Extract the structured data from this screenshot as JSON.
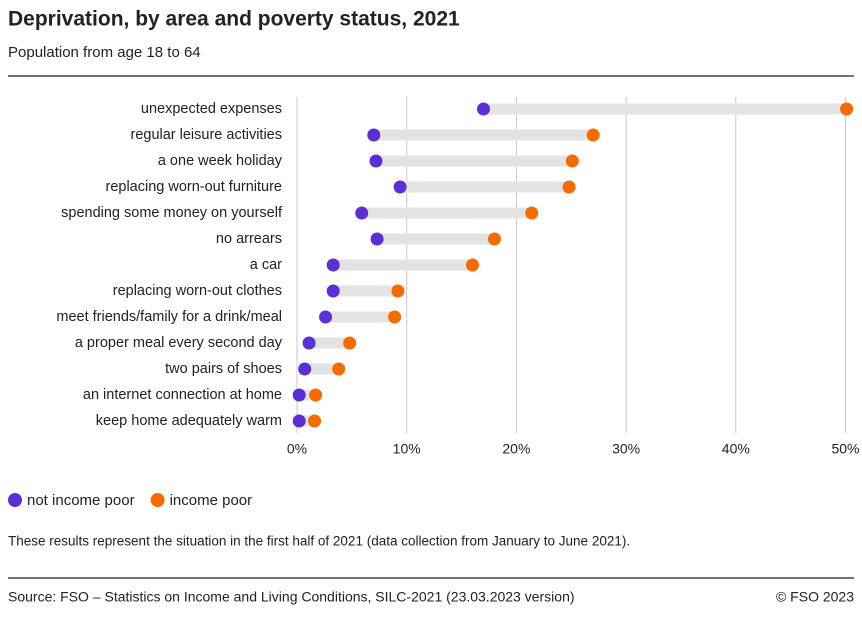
{
  "chart_data": {
    "type": "dumbbell",
    "title": "Deprivation, by area and poverty status, 2021",
    "subtitle": "Population from age 18 to 64",
    "categories": [
      "unexpected expenses",
      "regular leisure activities",
      "a one week holiday",
      "replacing worn-out furniture",
      "spending some money on yourself",
      "no arrears",
      "a car",
      "replacing worn-out clothes",
      "meet friends/family for a drink/meal",
      "a proper meal every second day",
      "two pairs of shoes",
      "an internet connection at home",
      "keep home adequately warm"
    ],
    "series": [
      {
        "name": "not income poor",
        "color": "#5b2fd6",
        "values": [
          17.0,
          7.0,
          7.2,
          9.4,
          5.9,
          7.3,
          3.3,
          3.3,
          2.6,
          1.1,
          0.7,
          0.2,
          0.2
        ]
      },
      {
        "name": "income poor",
        "color": "#f56b00",
        "values": [
          50.1,
          27.0,
          25.1,
          24.8,
          21.4,
          18.0,
          16.0,
          9.2,
          8.9,
          4.8,
          3.8,
          1.7,
          1.6
        ]
      }
    ],
    "xlim": [
      0,
      50.5
    ],
    "xticks": [
      {
        "value": 0,
        "label": "0%"
      },
      {
        "value": 10,
        "label": "10%"
      },
      {
        "value": 20,
        "label": "20%"
      },
      {
        "value": 30,
        "label": "30%"
      },
      {
        "value": 40,
        "label": "40%"
      },
      {
        "value": 50,
        "label": "50%"
      }
    ],
    "grid": true,
    "legend": "bottom-left",
    "note": "These results represent the situation in the first half of 2021 (data collection from January to June 2021).",
    "source": "Source: FSO – Statistics on Income and Living Conditions, SILC-2021 (23.03.2023 version)",
    "copyright": "© FSO 2023"
  }
}
